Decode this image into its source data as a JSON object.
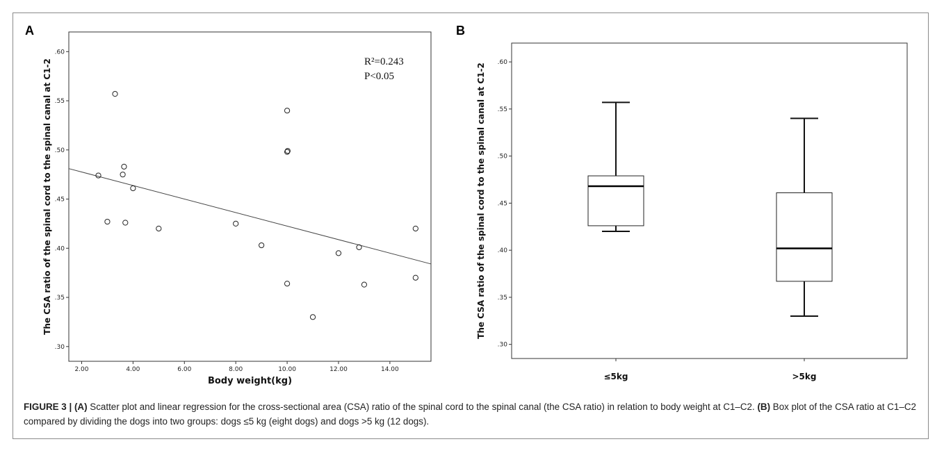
{
  "panels": {
    "a_label": "A",
    "b_label": "B"
  },
  "caption": {
    "label": "FIGURE 3 |",
    "a_tag": "(A)",
    "a_text": " Scatter plot and linear regression for the cross-sectional area (CSA) ratio of the spinal cord to the spinal canal (the CSA ratio) in relation to body weight at C1–C2. ",
    "b_tag": "(B)",
    "b_text": " Box plot of the CSA ratio at C1–C2 compared by dividing the dogs into two groups: dogs ≤5 kg (eight dogs) and dogs >5 kg (12 dogs)."
  },
  "chart_data": [
    {
      "type": "scatter",
      "title": "",
      "xlabel": "Body weight(kg)",
      "ylabel": "The CSA ratio of the spinal cord to the spinal canal at C1-2",
      "xlim": [
        1.5,
        15.6
      ],
      "ylim": [
        0.285,
        0.62
      ],
      "x_ticks": [
        2,
        4,
        6,
        8,
        10,
        12,
        14
      ],
      "x_tick_labels": [
        "2.00",
        "4.00",
        "6.00",
        "8.00",
        "10.00",
        "12.00",
        "14.00"
      ],
      "y_ticks": [
        0.3,
        0.35,
        0.4,
        0.45,
        0.5,
        0.55,
        0.6
      ],
      "y_tick_labels": [
        ".30",
        ".35",
        ".40",
        ".45",
        ".50",
        ".55",
        ".60"
      ],
      "annotations": [
        "R²=0.243",
        "P<0.05"
      ],
      "regression": {
        "x": [
          1.5,
          15.6
        ],
        "y": [
          0.481,
          0.384
        ]
      },
      "points": [
        {
          "x": 2.65,
          "y": 0.474
        },
        {
          "x": 3.0,
          "y": 0.427
        },
        {
          "x": 3.3,
          "y": 0.557
        },
        {
          "x": 3.6,
          "y": 0.475
        },
        {
          "x": 3.65,
          "y": 0.483
        },
        {
          "x": 3.7,
          "y": 0.426
        },
        {
          "x": 4.0,
          "y": 0.461
        },
        {
          "x": 5.0,
          "y": 0.42
        },
        {
          "x": 8.0,
          "y": 0.425
        },
        {
          "x": 9.0,
          "y": 0.403
        },
        {
          "x": 10.0,
          "y": 0.54
        },
        {
          "x": 10.0,
          "y": 0.498
        },
        {
          "x": 10.02,
          "y": 0.499
        },
        {
          "x": 10.0,
          "y": 0.364
        },
        {
          "x": 11.0,
          "y": 0.33
        },
        {
          "x": 12.0,
          "y": 0.395
        },
        {
          "x": 12.8,
          "y": 0.401
        },
        {
          "x": 13.0,
          "y": 0.363
        },
        {
          "x": 15.0,
          "y": 0.42
        },
        {
          "x": 15.0,
          "y": 0.37
        }
      ]
    },
    {
      "type": "box",
      "title": "",
      "xlabel": "",
      "ylabel": "The CSA ratio of the spinal cord to the spinal canal at C1-2",
      "ylim": [
        0.285,
        0.62
      ],
      "y_ticks": [
        0.3,
        0.35,
        0.4,
        0.45,
        0.5,
        0.55,
        0.6
      ],
      "y_tick_labels": [
        ".30",
        ".35",
        ".40",
        ".45",
        ".50",
        ".55",
        ".60"
      ],
      "categories": [
        "≤5kg",
        ">5kg"
      ],
      "boxes": [
        {
          "min": 0.42,
          "q1": 0.426,
          "median": 0.468,
          "q3": 0.479,
          "max": 0.557
        },
        {
          "min": 0.33,
          "q1": 0.367,
          "median": 0.402,
          "q3": 0.461,
          "max": 0.54
        }
      ]
    }
  ]
}
